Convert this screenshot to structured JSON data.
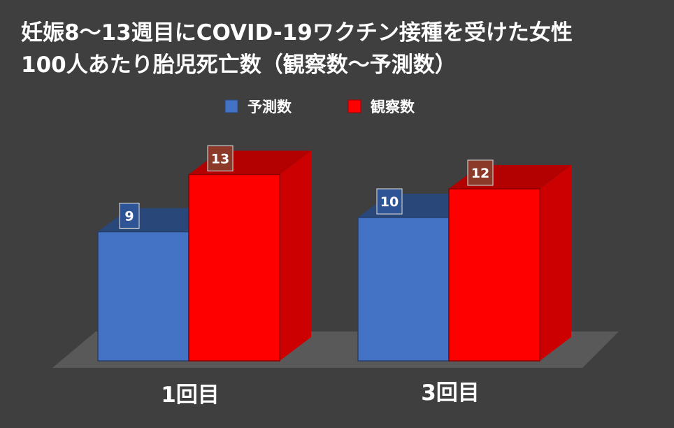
{
  "chart_data": {
    "type": "bar",
    "title_lines": [
      "妊娠8～13週目にCOVID-19ワクチン接種を受けた女性",
      "100人あたり胎児死亡数（観察数～予測数）"
    ],
    "categories": [
      "1回目",
      "3回目"
    ],
    "series": [
      {
        "name": "予測数",
        "values": [
          9,
          10
        ],
        "color": "#4472c4",
        "label_box": "#2f5496"
      },
      {
        "name": "観察数",
        "values": [
          13,
          12
        ],
        "color": "#ff0000",
        "label_box": "#8b3a2a"
      }
    ],
    "legend_position": "top-center",
    "three_d": true,
    "grid": false
  }
}
